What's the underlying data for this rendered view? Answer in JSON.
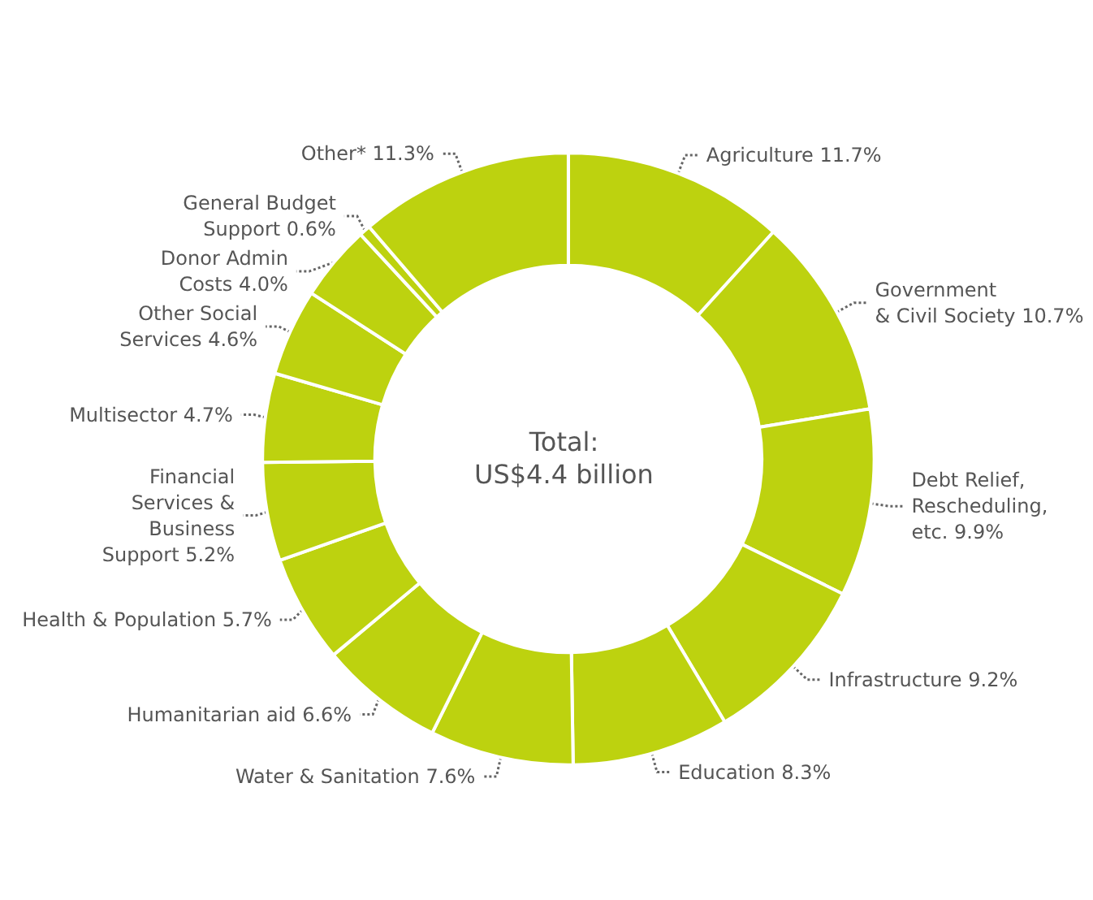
{
  "chart_data": {
    "type": "donut",
    "categories": [
      "Agriculture",
      "Government\n& Civil Society",
      "Debt Relief,\nRescheduling,\netc.",
      "Infrastructure",
      "Education",
      "Water & Sanitation",
      "Humanitarian aid",
      "Health & Population",
      "Financial\nServices &\nBusiness\nSupport",
      "Multisector",
      "Other Social\nServices",
      "Donor Admin\nCosts",
      "General Budget\nSupport",
      "Other*"
    ],
    "values": [
      11.7,
      10.7,
      9.9,
      9.2,
      8.3,
      7.6,
      6.6,
      5.7,
      5.2,
      4.7,
      4.6,
      4.0,
      0.6,
      11.3
    ],
    "value_labels": [
      "11.7%",
      "10.7%",
      "9.9%",
      "9.2%",
      "8.3%",
      "7.6%",
      "6.6%",
      "5.7%",
      "5.2%",
      "4.7%",
      "4.6%",
      "4.0%",
      "0.6%",
      "11.3%"
    ],
    "colors": [
      "#bdd20f",
      "#bdd20f",
      "#bdd20f",
      "#bdd20f",
      "#bdd20f",
      "#bdd20f",
      "#bdd20f",
      "#bdd20f",
      "#bdd20f",
      "#bdd20f",
      "#bdd20f",
      "#bdd20f",
      "#bdd20f",
      "#bdd20f"
    ],
    "annotations": [
      "Total:\nUS$4.4 billion"
    ],
    "legend": false
  }
}
